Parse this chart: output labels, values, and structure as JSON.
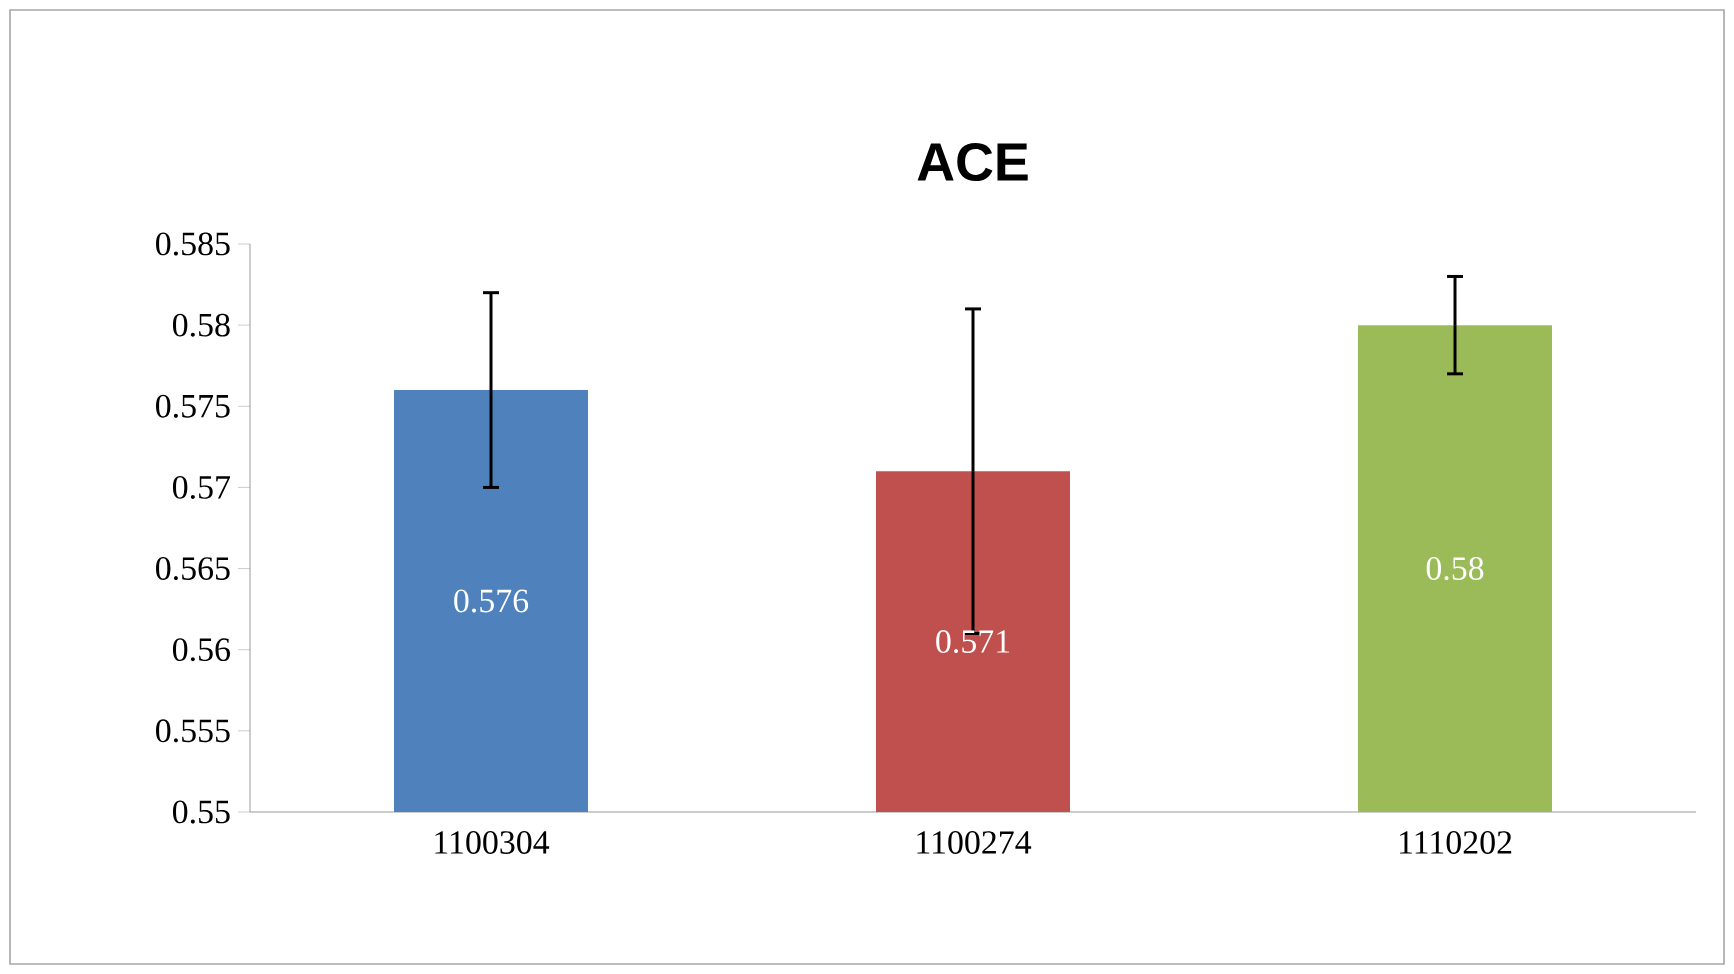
{
  "chart_data": {
    "type": "bar",
    "title": "ACE",
    "categories": [
      "1100304",
      "1100274",
      "1110202"
    ],
    "values": [
      0.576,
      0.571,
      0.58
    ],
    "colors": [
      "#4f81bd",
      "#c0504d",
      "#9bbb59"
    ],
    "errors": [
      0.006,
      0.01,
      0.003
    ],
    "ylim": [
      0.55,
      0.585
    ],
    "yticks": [
      0.55,
      0.555,
      0.56,
      0.565,
      0.57,
      0.575,
      0.58,
      0.585
    ],
    "data_labels": true
  }
}
